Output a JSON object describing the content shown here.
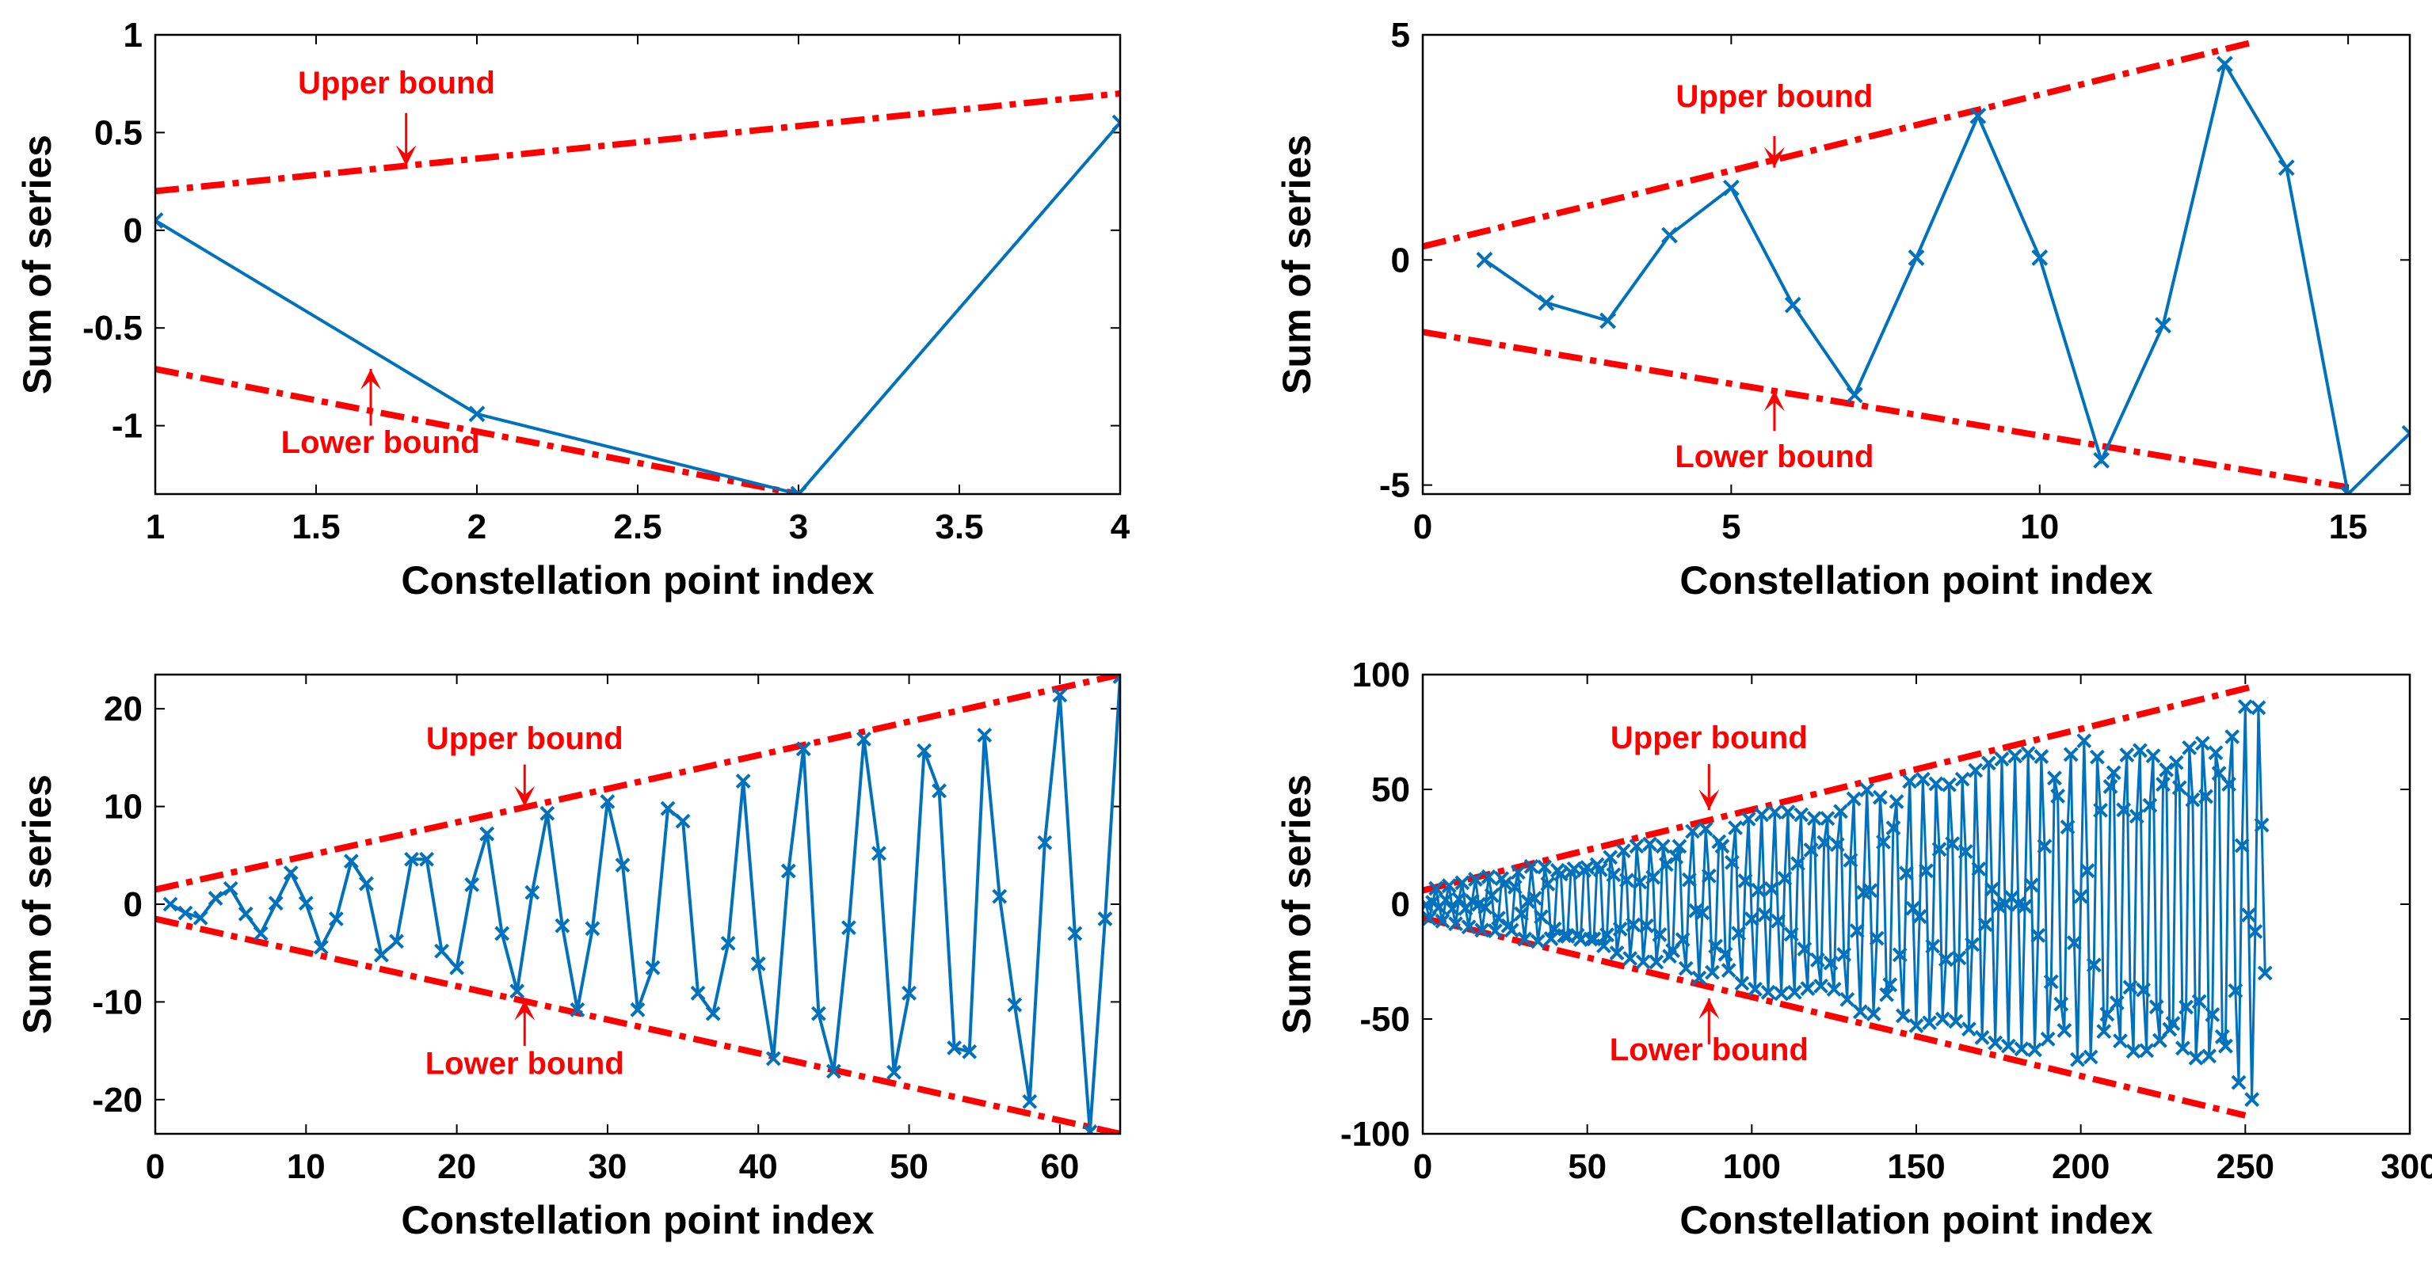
{
  "colors": {
    "series": "#0072BD",
    "bound": "#FF0000",
    "axis": "#000000",
    "background": "#FFFFFF"
  },
  "chart_data": [
    {
      "type": "line",
      "panel": "top-left",
      "xlabel": "Constellation point index",
      "ylabel": "Sum of series",
      "xlim": [
        1,
        4
      ],
      "ylim": [
        -1.35,
        1
      ],
      "xticks": [
        1,
        1.5,
        2,
        2.5,
        3,
        3.5,
        4
      ],
      "xtick_labels": [
        "1",
        "1.5",
        "2",
        "2.5",
        "3",
        "3.5",
        "4"
      ],
      "yticks": [
        -1,
        -0.5,
        0,
        0.5,
        1
      ],
      "ytick_labels": [
        "-1",
        "-0.5",
        "0",
        "0.5",
        "1"
      ],
      "series": [
        {
          "name": "Sum of series",
          "marker": "x",
          "x": [
            1,
            2,
            3,
            4
          ],
          "y": [
            0.05,
            -0.94,
            -1.35,
            0.55
          ]
        }
      ],
      "upper_bound": {
        "x": [
          1,
          4
        ],
        "y": [
          0.2,
          0.7
        ]
      },
      "lower_bound": {
        "x": [
          1,
          3
        ],
        "y": [
          -0.71,
          -1.35
        ]
      },
      "annotations": [
        {
          "text": "Upper bound",
          "text_x": 1.75,
          "text_y": 0.7,
          "arrow_from": [
            1.78,
            0.6
          ],
          "arrow_to": [
            1.78,
            0.33
          ],
          "direction": "down"
        },
        {
          "text": "Lower bound",
          "text_x": 1.7,
          "text_y": -1.14,
          "arrow_from": [
            1.67,
            -1.0
          ],
          "arrow_to": [
            1.67,
            -0.71
          ],
          "direction": "up"
        }
      ]
    },
    {
      "type": "line",
      "panel": "top-right",
      "xlabel": "Constellation point index",
      "ylabel": "Sum of series",
      "xlim": [
        0,
        16
      ],
      "ylim": [
        -5.2,
        5
      ],
      "xticks": [
        0,
        5,
        10,
        15
      ],
      "xtick_labels": [
        "0",
        "5",
        "10",
        "15"
      ],
      "yticks": [
        -5,
        0,
        5
      ],
      "ytick_labels": [
        "-5",
        "0",
        "5"
      ],
      "series": [
        {
          "name": "Sum of series",
          "marker": "x",
          "x": [
            1,
            2,
            3,
            4,
            5,
            6,
            7,
            8,
            9,
            10,
            11,
            12,
            13,
            14,
            15,
            16
          ],
          "y": [
            0,
            -0.95,
            -1.35,
            0.55,
            1.6,
            -1.0,
            -3.0,
            0.05,
            3.2,
            0.05,
            -4.45,
            -1.45,
            4.35,
            2.05,
            -5.2,
            -3.85
          ]
        }
      ],
      "upper_bound": {
        "x": [
          0,
          13.5
        ],
        "y": [
          0.3,
          4.85
        ]
      },
      "lower_bound": {
        "x": [
          0,
          15
        ],
        "y": [
          -1.6,
          -5.05
        ]
      },
      "annotations": [
        {
          "text": "Upper bound",
          "text_x": 5.7,
          "text_y": 3.4,
          "arrow_from": [
            5.7,
            2.75
          ],
          "arrow_to": [
            5.7,
            2.05
          ],
          "direction": "down"
        },
        {
          "text": "Lower bound",
          "text_x": 5.7,
          "text_y": -4.6,
          "arrow_from": [
            5.7,
            -3.8
          ],
          "arrow_to": [
            5.7,
            -2.9
          ],
          "direction": "up"
        }
      ]
    },
    {
      "type": "line",
      "panel": "bottom-left",
      "xlabel": "Constellation point index",
      "ylabel": "Sum of series",
      "xlim": [
        0,
        64
      ],
      "ylim": [
        -23.5,
        23.5
      ],
      "xticks": [
        0,
        10,
        20,
        30,
        40,
        50,
        60
      ],
      "xtick_labels": [
        "0",
        "10",
        "20",
        "30",
        "40",
        "50",
        "60"
      ],
      "yticks": [
        -20,
        -10,
        0,
        10,
        20
      ],
      "ytick_labels": [
        "-20",
        "-10",
        "0",
        "10",
        "20"
      ],
      "series": [
        {
          "name": "Sum of series",
          "marker": "x",
          "x": [
            1,
            2,
            3,
            4,
            5,
            6,
            7,
            8,
            9,
            10,
            11,
            12,
            13,
            14,
            15,
            16,
            17,
            18,
            19,
            20,
            21,
            22,
            23,
            24,
            25,
            26,
            27,
            28,
            29,
            30,
            31,
            32,
            33,
            34,
            35,
            36,
            37,
            38,
            39,
            40,
            41,
            42,
            43,
            44,
            45,
            46,
            47,
            48,
            49,
            50,
            51,
            52,
            53,
            54,
            55,
            56,
            57,
            58,
            59,
            60,
            61,
            62,
            63,
            64
          ],
          "y": [
            0,
            -0.9,
            -1.4,
            0.6,
            1.6,
            -1.0,
            -3.0,
            0.1,
            3.2,
            0.1,
            -4.4,
            -1.5,
            4.4,
            2.1,
            -5.2,
            -3.8,
            4.6,
            4.6,
            -4.8,
            -6.5,
            2.0,
            7.2,
            -3.0,
            -8.9,
            1.2,
            9.3,
            -2.2,
            -10.8,
            -2.5,
            10.5,
            4.0,
            -10.8,
            -6.5,
            9.8,
            8.5,
            -9.1,
            -11.2,
            -4.0,
            12.6,
            -6.1,
            -15.8,
            3.4,
            15.9,
            -11.2,
            -17.1,
            -2.4,
            16.9,
            5.2,
            -17.2,
            -9.1,
            15.7,
            11.6,
            -14.7,
            -15.1,
            17.3,
            0.8,
            -10.3,
            -20.2,
            6.3,
            21.4,
            -3.0,
            -23.3,
            -1.5,
            23.3
          ]
        }
      ],
      "upper_bound": {
        "x": [
          0,
          64
        ],
        "y": [
          1.5,
          23.5
        ]
      },
      "lower_bound": {
        "x": [
          0,
          64
        ],
        "y": [
          -1.5,
          -23.5
        ]
      },
      "annotations": [
        {
          "text": "Upper bound",
          "text_x": 24.5,
          "text_y": 15.9,
          "arrow_from": [
            24.5,
            14.3
          ],
          "arrow_to": [
            24.5,
            10.0
          ],
          "direction": "down"
        },
        {
          "text": "Lower bound",
          "text_x": 24.5,
          "text_y": -17.4,
          "arrow_from": [
            24.5,
            -14.5
          ],
          "arrow_to": [
            24.5,
            -9.8
          ],
          "direction": "up"
        }
      ]
    },
    {
      "type": "line",
      "panel": "bottom-right",
      "xlabel": "Constellation point index",
      "ylabel": "Sum of series",
      "xlim": [
        0,
        300
      ],
      "ylim": [
        -100,
        100
      ],
      "xticks": [
        0,
        50,
        100,
        150,
        200,
        250,
        300
      ],
      "xtick_labels": [
        "0",
        "50",
        "100",
        "150",
        "200",
        "250",
        "300"
      ],
      "yticks": [
        -100,
        -50,
        0,
        50,
        100
      ],
      "ytick_labels": [
        "-100",
        "-50",
        "0",
        "50",
        "100"
      ],
      "series": [
        {
          "name": "Sum of series",
          "marker": "x",
          "x_range": [
            1,
            256
          ],
          "y_last": -30,
          "envelope": {
            "x": [
              0,
              256
            ],
            "upper": [
              6,
              95
            ],
            "lower": [
              -6,
              -92
            ]
          },
          "oscillation_period": 4.1
        }
      ],
      "upper_bound": {
        "x": [
          0,
          253
        ],
        "y": [
          6,
          95
        ]
      },
      "lower_bound": {
        "x": [
          0,
          250
        ],
        "y": [
          -6,
          -92
        ]
      },
      "annotations": [
        {
          "text": "Upper bound",
          "text_x": 87,
          "text_y": 68,
          "arrow_from": [
            87,
            61
          ],
          "arrow_to": [
            87,
            41
          ],
          "direction": "down"
        },
        {
          "text": "Lower bound",
          "text_x": 87,
          "text_y": -68,
          "arrow_from": [
            87,
            -61
          ],
          "arrow_to": [
            87,
            -41
          ],
          "direction": "up"
        }
      ]
    }
  ]
}
